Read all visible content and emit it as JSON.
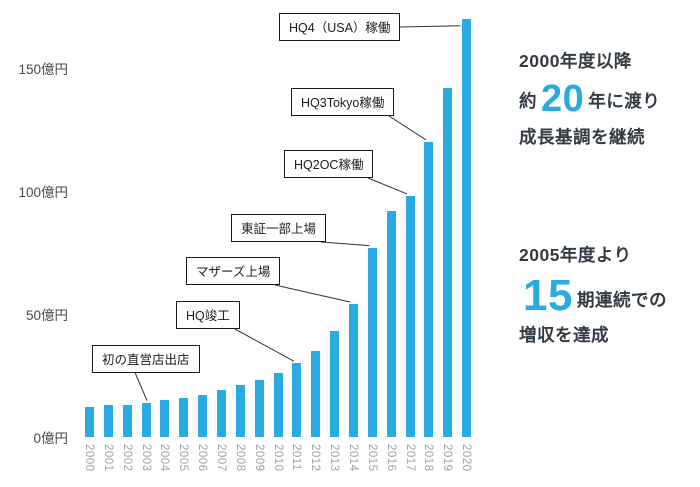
{
  "chart_data": {
    "type": "bar",
    "title": "",
    "y_unit": "億円",
    "categories": [
      "2000",
      "2001",
      "2002",
      "2003",
      "2004",
      "2005",
      "2006",
      "2007",
      "2008",
      "2009",
      "2010",
      "2011",
      "2012",
      "2013",
      "2014",
      "2015",
      "2016",
      "2017",
      "2018",
      "2019",
      "2020"
    ],
    "values": [
      12,
      13,
      13,
      14,
      15,
      16,
      17,
      19,
      21,
      23,
      26,
      30,
      35,
      43,
      54,
      77,
      92,
      98,
      120,
      142,
      170
    ],
    "ylim": [
      0,
      175
    ],
    "yticks": [
      {
        "value": 0,
        "label": "0億円"
      },
      {
        "value": 50,
        "label": "50億円"
      },
      {
        "value": 100,
        "label": "100億円"
      },
      {
        "value": 150,
        "label": "150億円"
      }
    ],
    "grid": false,
    "legend": null,
    "bar_color": "#29abe2",
    "annotations": [
      {
        "label": "初の直営店出店",
        "year": "2003"
      },
      {
        "label": "HQ竣工",
        "year": "2011"
      },
      {
        "label": "マザーズ上場",
        "year": "2014"
      },
      {
        "label": "東証一部上場",
        "year": "2015"
      },
      {
        "label": "HQ2OC稼働",
        "year": "2017"
      },
      {
        "label": "HQ3Tokyo稼働",
        "year": "2018"
      },
      {
        "label": "HQ4（USA）稼働",
        "year": "2020"
      }
    ]
  },
  "side_panel": {
    "accent_color": "#29abe2",
    "text_color": "#333b44",
    "block1": {
      "line1": "2000年度以降",
      "line2_prefix": "約",
      "line2_number": "20",
      "line2_suffix": "年に渡り",
      "line3": "成長基調を継続"
    },
    "block2": {
      "line1": "2005年度より",
      "line2_number": "15",
      "line2_suffix": "期連続での",
      "line3": "増収を達成"
    }
  }
}
